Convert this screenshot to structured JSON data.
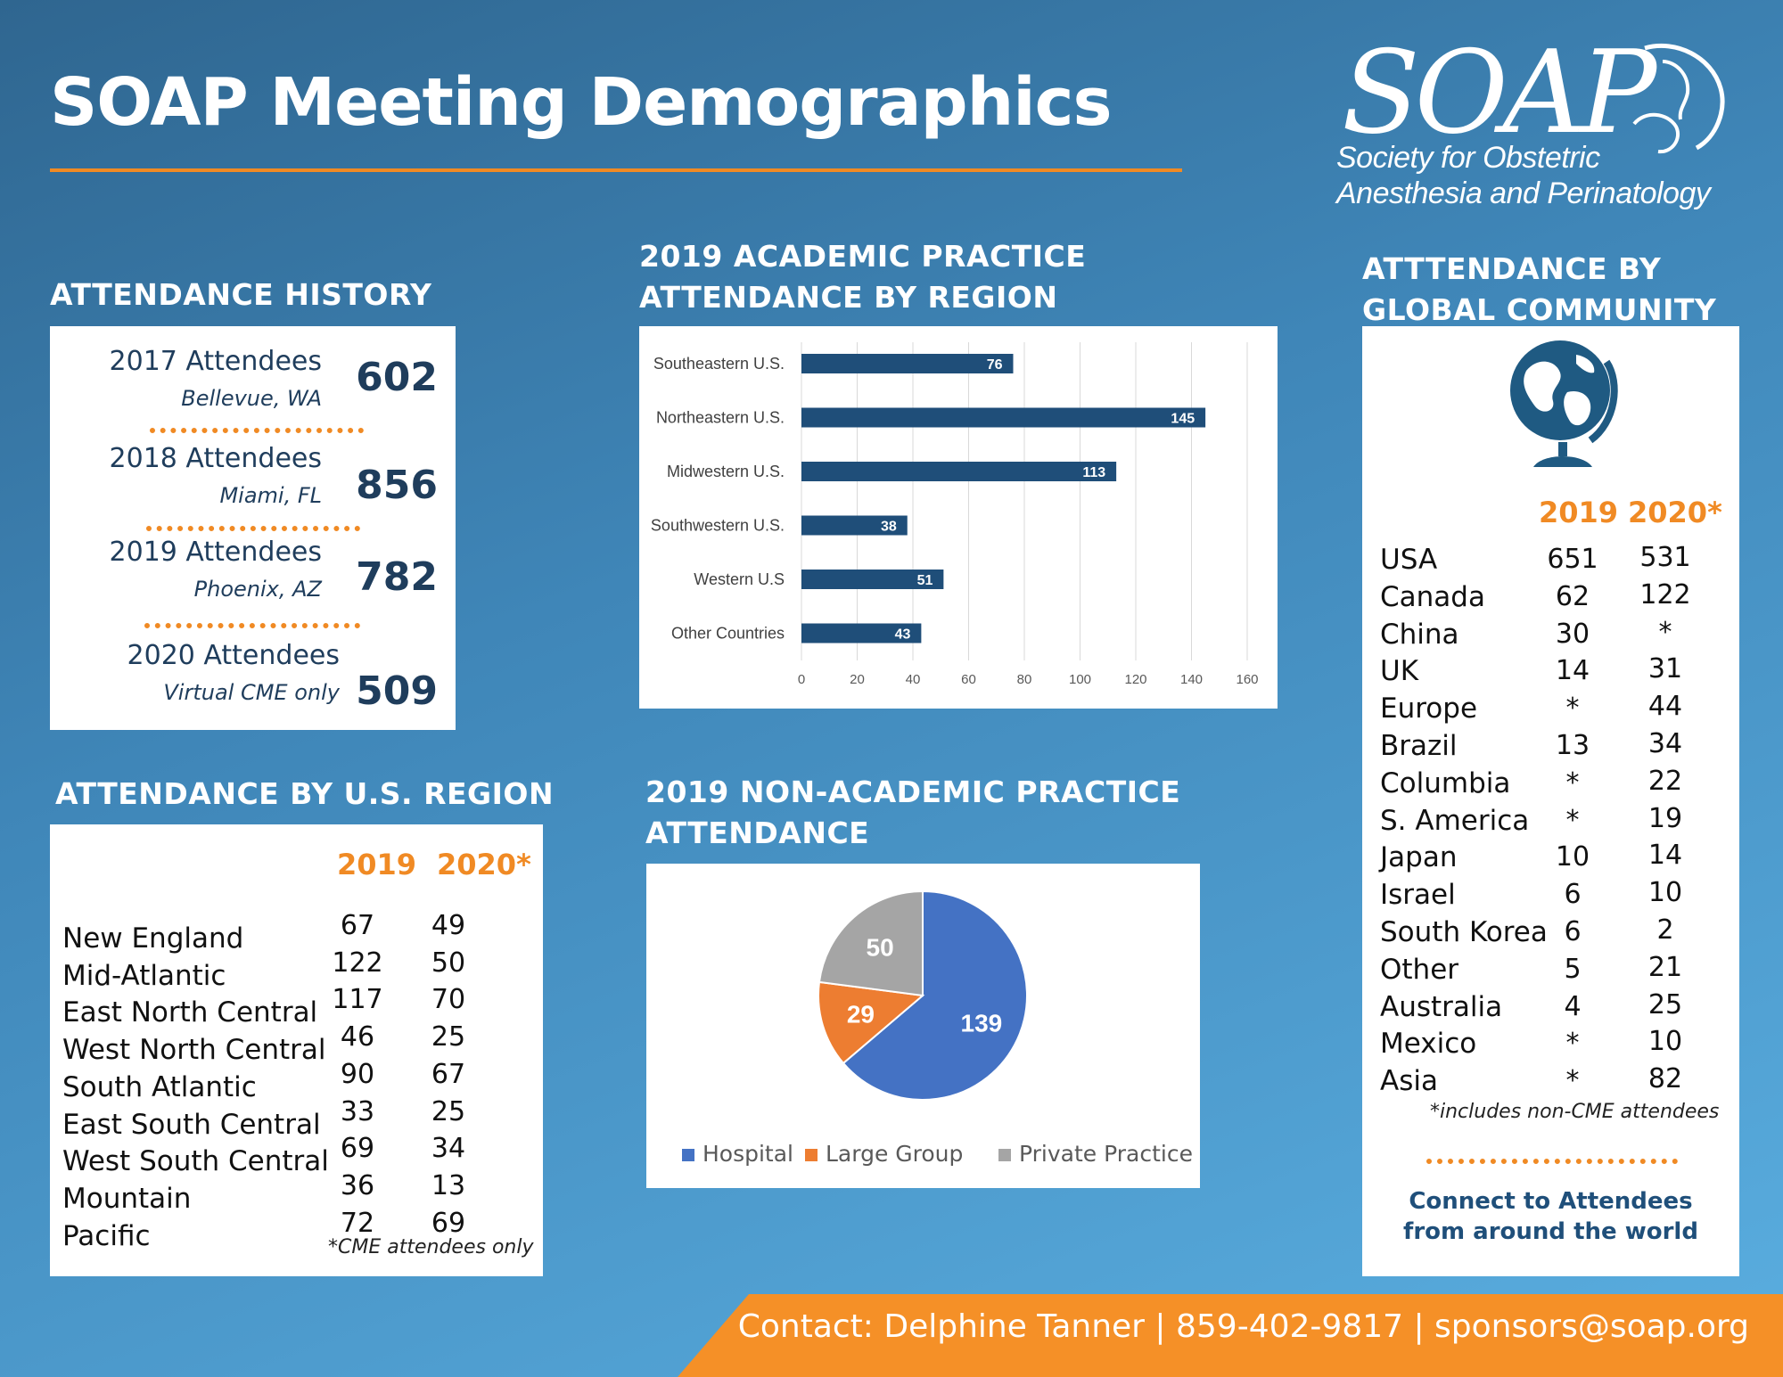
{
  "title": "SOAP Meeting Demographics",
  "logo": {
    "word": "SOAP",
    "line1": "Society for Obstetric",
    "line2": "Anesthesia and Perinatology"
  },
  "history": {
    "heading": "ATTENDANCE HISTORY",
    "rows": [
      {
        "label": "2017 Attendees",
        "location": "Bellevue, WA",
        "value": "602"
      },
      {
        "label": "2018 Attendees",
        "location": "Miami, FL",
        "value": "856"
      },
      {
        "label": "2019 Attendees",
        "location": "Phoenix, AZ",
        "value": "782"
      },
      {
        "label": "2020 Attendees",
        "location": "Virtual CME only",
        "value": "509"
      }
    ]
  },
  "us_region": {
    "heading": "ATTENDANCE BY U.S. REGION",
    "col1": "2019",
    "col2": "2020*",
    "rows": [
      {
        "name": "New England",
        "y2019": "67",
        "y2020": "49"
      },
      {
        "name": "Mid-Atlantic",
        "y2019": "122",
        "y2020": "50"
      },
      {
        "name": "East North Central",
        "y2019": "117",
        "y2020": "70"
      },
      {
        "name": "West North Central",
        "y2019": "46",
        "y2020": "25"
      },
      {
        "name": "South Atlantic",
        "y2019": "90",
        "y2020": "67"
      },
      {
        "name": "East South Central",
        "y2019": "33",
        "y2020": "25"
      },
      {
        "name": "West South Central",
        "y2019": "69",
        "y2020": "34"
      },
      {
        "name": "Mountain",
        "y2019": "36",
        "y2020": "13"
      },
      {
        "name": "Pacific",
        "y2019": "72",
        "y2020": "69"
      }
    ],
    "note": "*CME attendees only"
  },
  "academic": {
    "heading1": "2019 ACADEMIC PRACTICE",
    "heading2": "ATTENDANCE BY REGION"
  },
  "nonacademic": {
    "heading1": "2019 NON-ACADEMIC PRACTICE",
    "heading2": "ATTENDANCE"
  },
  "global": {
    "heading1": "ATTTENDANCE BY",
    "heading2": "GLOBAL COMMUNITY",
    "icon": "globe-icon",
    "col1": "2019",
    "col2": "2020*",
    "rows": [
      {
        "name": "USA",
        "y2019": "651",
        "y2020": "531"
      },
      {
        "name": "Canada",
        "y2019": "62",
        "y2020": "122"
      },
      {
        "name": "China",
        "y2019": "30",
        "y2020": "*"
      },
      {
        "name": "UK",
        "y2019": "14",
        "y2020": "31"
      },
      {
        "name": "Europe",
        "y2019": "*",
        "y2020": "44"
      },
      {
        "name": "Brazil",
        "y2019": "13",
        "y2020": "34"
      },
      {
        "name": "Columbia",
        "y2019": "*",
        "y2020": "22"
      },
      {
        "name": "S. America",
        "y2019": "*",
        "y2020": "19"
      },
      {
        "name": "Japan",
        "y2019": "10",
        "y2020": "14"
      },
      {
        "name": "Israel",
        "y2019": "6",
        "y2020": "10"
      },
      {
        "name": "South Korea",
        "y2019": "6",
        "y2020": "2"
      },
      {
        "name": "Other",
        "y2019": "5",
        "y2020": "21"
      },
      {
        "name": "Australia",
        "y2019": "4",
        "y2020": "25"
      },
      {
        "name": "Mexico",
        "y2019": "*",
        "y2020": "10"
      },
      {
        "name": "Asia",
        "y2019": "*",
        "y2020": "82"
      }
    ],
    "note": "*includes non-CME attendees",
    "connect1": "Connect to Attendees",
    "connect2": "from around the world"
  },
  "footer": {
    "text": "Contact: Delphine Tanner  |  859-402-9817  |  sponsors@soap.org"
  },
  "colors": {
    "accent": "#f08a24",
    "navy": "#1f4e79",
    "pie_hospital": "#4472c4",
    "pie_large_group": "#ed7d31",
    "pie_private": "#a5a5a5"
  },
  "chart_data": [
    {
      "type": "bar",
      "orientation": "horizontal",
      "categories": [
        "Southeastern U.S.",
        "Northeastern U.S.",
        "Midwestern U.S.",
        "Southwestern U.S.",
        "Western U.S",
        "Other Countries"
      ],
      "values": [
        76,
        145,
        113,
        38,
        51,
        43
      ],
      "xlim": [
        0,
        160
      ],
      "ticks": [
        "0",
        "20",
        "40",
        "60",
        "80",
        "100",
        "120",
        "140",
        "160"
      ],
      "grid": true
    },
    {
      "type": "pie",
      "categories": [
        "Hospital",
        "Large Group",
        "Private Practice"
      ],
      "values": [
        139,
        29,
        50
      ],
      "legend": "bottom"
    }
  ]
}
